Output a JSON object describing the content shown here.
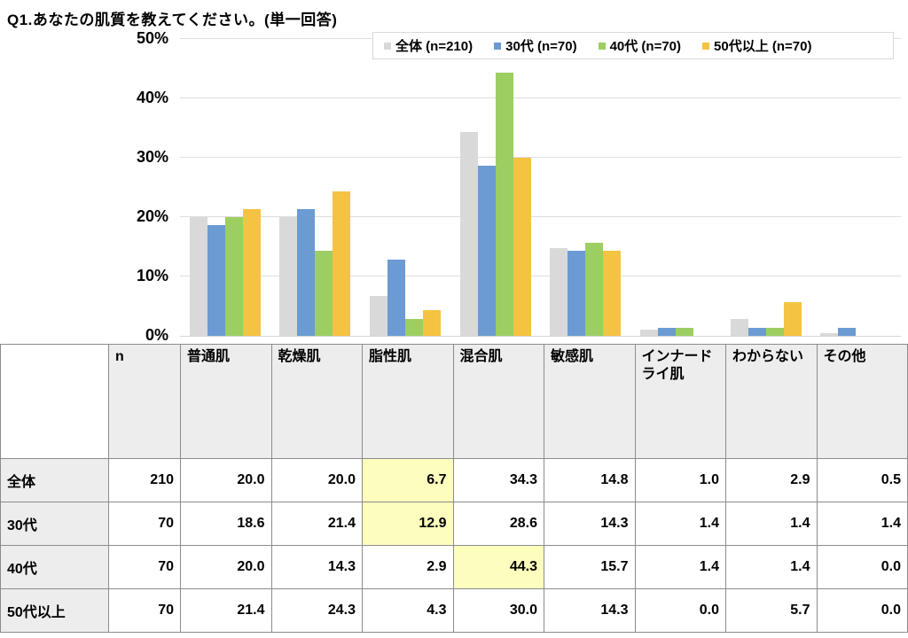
{
  "title": "Q1.あなたの肌質を教えてください。(単一回答)",
  "chart_data": {
    "type": "bar",
    "title": "Q1.あなたの肌質を教えてください。(単一回答)",
    "categories": [
      "普通肌",
      "乾燥肌",
      "脂性肌",
      "混合肌",
      "敏感肌",
      "インナードライ肌",
      "わからない",
      "その他"
    ],
    "series": [
      {
        "name": "全体 (n=210)",
        "color": "#D9D9D9",
        "values": [
          20.0,
          20.0,
          6.7,
          34.3,
          14.8,
          1.0,
          2.9,
          0.5
        ]
      },
      {
        "name": "30代 (n=70)",
        "color": "#6B9BD2",
        "values": [
          18.6,
          21.4,
          12.9,
          28.6,
          14.3,
          1.4,
          1.4,
          1.4
        ]
      },
      {
        "name": "40代 (n=70)",
        "color": "#9DCE62",
        "values": [
          20.0,
          14.3,
          2.9,
          44.3,
          15.7,
          1.4,
          1.4,
          0.0
        ]
      },
      {
        "name": "50代以上 (n=70)",
        "color": "#F5C342",
        "values": [
          21.4,
          24.3,
          4.3,
          30.0,
          14.3,
          0.0,
          5.7,
          0.0
        ]
      }
    ],
    "ylim": [
      0,
      50
    ],
    "ytick_step": 10,
    "ytick_labels": [
      "0%",
      "10%",
      "20%",
      "30%",
      "40%",
      "50%"
    ],
    "grid": true,
    "legend_position": "top-right"
  },
  "table": {
    "columns": [
      "",
      "n",
      "普通肌",
      "乾燥肌",
      "脂性肌",
      "混合肌",
      "敏感肌",
      "インナードライ肌",
      "わからない",
      "その他"
    ],
    "highlight_color": "#FDFDBE",
    "rows": [
      {
        "label": "全体",
        "n": "210",
        "values": [
          "20.0",
          "20.0",
          "6.7",
          "34.3",
          "14.8",
          "1.0",
          "2.9",
          "0.5"
        ],
        "highlight": [
          2
        ]
      },
      {
        "label": "30代",
        "n": "70",
        "values": [
          "18.6",
          "21.4",
          "12.9",
          "28.6",
          "14.3",
          "1.4",
          "1.4",
          "1.4"
        ],
        "highlight": [
          2
        ]
      },
      {
        "label": "40代",
        "n": "70",
        "values": [
          "20.0",
          "14.3",
          "2.9",
          "44.3",
          "15.7",
          "1.4",
          "1.4",
          "0.0"
        ],
        "highlight": [
          3
        ]
      },
      {
        "label": "50代以上",
        "n": "70",
        "values": [
          "21.4",
          "24.3",
          "4.3",
          "30.0",
          "14.3",
          "0.0",
          "5.7",
          "0.0"
        ],
        "highlight": []
      }
    ]
  }
}
